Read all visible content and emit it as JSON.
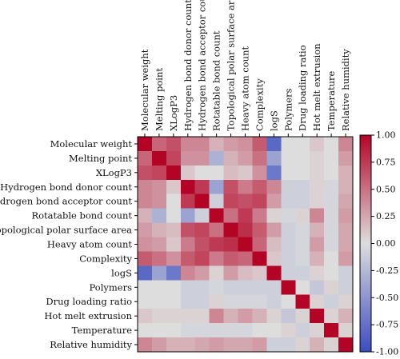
{
  "chart_data": {
    "type": "heatmap",
    "title": "",
    "xlabel": "",
    "ylabel": "",
    "variables": [
      "Molecular weight",
      "Melting point",
      "XLogP3",
      "Hydrogen bond donor count",
      "Hydrogen bond acceptor count",
      "Rotatable bond count",
      "Topological polar surface area",
      "Heavy atom count",
      "Complexity",
      "logS",
      "Polymers",
      "Drug loading ratio",
      "Hot melt extrusion",
      "Temperature",
      "Relative humidity"
    ],
    "matrix": [
      [
        1.0,
        0.55,
        0.65,
        0.4,
        0.4,
        0.2,
        0.3,
        0.35,
        0.6,
        -0.8,
        0.0,
        0.0,
        0.1,
        0.0,
        0.4
      ],
      [
        0.55,
        1.0,
        0.7,
        0.35,
        0.35,
        -0.3,
        0.2,
        0.3,
        0.5,
        -0.4,
        0.0,
        0.0,
        0.05,
        0.0,
        0.3
      ],
      [
        0.65,
        0.7,
        1.0,
        0.1,
        0.0,
        0.0,
        0.15,
        0.1,
        0.35,
        -0.7,
        0.0,
        0.0,
        0.05,
        0.0,
        0.2
      ],
      [
        0.4,
        0.35,
        0.1,
        1.0,
        0.75,
        -0.4,
        0.65,
        0.45,
        0.6,
        0.4,
        -0.1,
        -0.1,
        0.05,
        -0.05,
        0.2
      ],
      [
        0.4,
        0.35,
        0.0,
        0.75,
        1.0,
        -0.1,
        0.7,
        0.65,
        0.7,
        0.3,
        -0.1,
        -0.1,
        0.05,
        -0.05,
        0.25
      ],
      [
        0.2,
        -0.3,
        0.0,
        -0.4,
        -0.1,
        1.0,
        0.5,
        0.75,
        0.45,
        0.05,
        -0.05,
        0.05,
        0.4,
        -0.05,
        0.3
      ],
      [
        0.3,
        0.2,
        0.15,
        0.65,
        0.7,
        0.5,
        1.0,
        0.8,
        0.6,
        0.3,
        -0.1,
        -0.05,
        0.2,
        -0.05,
        0.25
      ],
      [
        0.35,
        0.3,
        0.1,
        0.45,
        0.65,
        0.75,
        0.8,
        1.0,
        0.55,
        0.15,
        -0.1,
        -0.05,
        0.3,
        -0.05,
        0.25
      ],
      [
        0.6,
        0.5,
        0.35,
        0.6,
        0.7,
        0.45,
        0.6,
        0.55,
        1.0,
        0.1,
        -0.1,
        -0.05,
        0.2,
        0.0,
        0.3
      ],
      [
        -0.8,
        -0.4,
        -0.7,
        0.4,
        0.3,
        0.05,
        0.3,
        0.15,
        0.1,
        1.0,
        -0.1,
        -0.1,
        0.05,
        0.0,
        -0.1
      ],
      [
        0.0,
        0.0,
        0.0,
        -0.1,
        -0.1,
        -0.05,
        -0.1,
        -0.1,
        -0.1,
        -0.1,
        1.0,
        0.0,
        -0.15,
        0.05,
        -0.1
      ],
      [
        0.0,
        0.0,
        0.0,
        -0.1,
        -0.1,
        0.05,
        -0.05,
        -0.05,
        -0.05,
        -0.1,
        0.0,
        1.0,
        0.05,
        -0.1,
        0.05
      ],
      [
        0.1,
        0.05,
        0.05,
        0.05,
        0.05,
        0.4,
        0.2,
        0.3,
        0.2,
        0.05,
        -0.15,
        0.05,
        1.0,
        0.05,
        0.2
      ],
      [
        0.0,
        0.0,
        0.0,
        -0.05,
        -0.05,
        -0.05,
        -0.05,
        -0.05,
        0.0,
        0.0,
        0.05,
        -0.1,
        0.05,
        1.0,
        0.05
      ],
      [
        0.4,
        0.3,
        0.2,
        0.2,
        0.25,
        0.3,
        0.25,
        0.25,
        0.3,
        -0.1,
        -0.1,
        0.05,
        0.2,
        0.05,
        1.0
      ]
    ],
    "colorbar": {
      "min": -1.0,
      "max": 1.0,
      "ticks": [
        "1.00",
        "0.75",
        "0.50",
        "0.25",
        "0.00",
        "-0.25",
        "-0.50",
        "-0.75",
        "-1.00"
      ],
      "colormap": "coolwarm",
      "low_color": "#3b4cc0",
      "mid_color": "#dddddd",
      "high_color": "#b40426"
    },
    "grid": false,
    "legend": "colorbar-right"
  }
}
